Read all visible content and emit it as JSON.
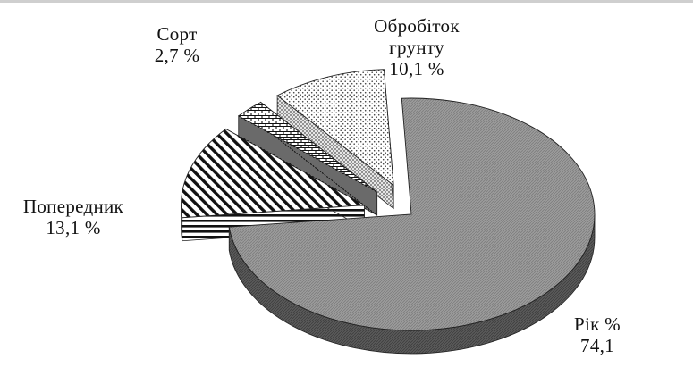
{
  "chart_data": {
    "type": "pie",
    "style": "3D exploded pie",
    "legend": "none",
    "slices": [
      {
        "name": "Рік",
        "value": 74.1,
        "label_line1": "Рік %",
        "label_line2": "74,1",
        "pattern": "gray-fine-hatch"
      },
      {
        "name": "Попередник",
        "value": 13.1,
        "label_line1": "Попередник",
        "label_line2": "13,1 %",
        "pattern": "diagonal-stripes"
      },
      {
        "name": "Сорт",
        "value": 2.7,
        "label_line1": "Сорт",
        "label_line2": "2,7 %",
        "pattern": "brick"
      },
      {
        "name": "Обробіток грунту",
        "value": 10.1,
        "label_line1": "Обробіток",
        "label_line2": "грунту",
        "label_line3": "10,1 %",
        "pattern": "dotted"
      }
    ]
  }
}
